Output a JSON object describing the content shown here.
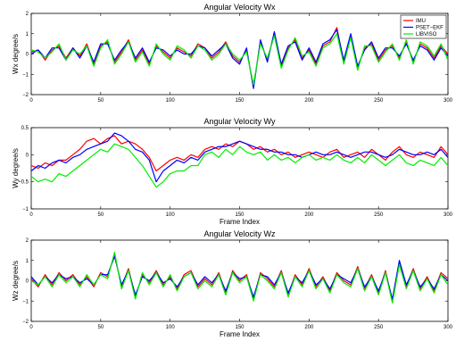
{
  "chart_data": [
    {
      "type": "line",
      "title": "Angular Velocity Wx",
      "xlabel": "",
      "ylabel": "Wx degree/s",
      "xlim": [
        0,
        300
      ],
      "ylim": [
        -2,
        2
      ],
      "xticks": [
        "0",
        "50",
        "100",
        "150",
        "200",
        "250",
        "300"
      ],
      "yticks": [
        "2",
        "1",
        "0",
        "−1",
        "−2"
      ],
      "legend": {
        "placement": "top-right",
        "entries": [
          "IMU",
          "PSET−EKF",
          "LIBVISO"
        ]
      },
      "x": [
        0,
        5,
        10,
        15,
        20,
        25,
        30,
        35,
        40,
        45,
        50,
        55,
        60,
        65,
        70,
        75,
        80,
        85,
        90,
        95,
        100,
        105,
        110,
        115,
        120,
        125,
        130,
        135,
        140,
        145,
        150,
        155,
        160,
        165,
        170,
        175,
        180,
        185,
        190,
        195,
        200,
        205,
        210,
        215,
        220,
        225,
        230,
        235,
        240,
        245,
        250,
        255,
        260,
        265,
        270,
        275,
        280,
        285,
        290,
        295,
        300
      ],
      "series": [
        {
          "name": "IMU",
          "color": "#ff0000",
          "values": [
            0.1,
            0.2,
            -0.3,
            0.2,
            0.4,
            -0.2,
            0.3,
            -0.1,
            0.5,
            -0.5,
            0.4,
            0.6,
            -0.4,
            0.1,
            0.7,
            -0.3,
            0.2,
            -0.5,
            0.4,
            0.1,
            -0.2,
            0.3,
            0.1,
            -0.1,
            0.5,
            0.3,
            -0.2,
            0.1,
            0.6,
            -0.1,
            -0.4,
            0.2,
            -1.6,
            0.6,
            -0.3,
            1.0,
            -0.6,
            0.3,
            0.7,
            -0.2,
            0.2,
            -0.5,
            0.4,
            0.6,
            1.3,
            -0.4,
            0.9,
            -0.7,
            0.3,
            0.5,
            -0.3,
            0.2,
            0.4,
            -0.2,
            0.6,
            -0.4,
            0.5,
            0.3,
            -0.2,
            0.4,
            0.0
          ]
        },
        {
          "name": "PSET−EKF",
          "color": "#0000ff",
          "values": [
            0.0,
            0.2,
            -0.2,
            0.3,
            0.3,
            -0.3,
            0.3,
            -0.2,
            0.4,
            -0.4,
            0.5,
            0.5,
            -0.3,
            0.2,
            0.6,
            -0.2,
            0.3,
            -0.4,
            0.3,
            0.2,
            -0.1,
            0.2,
            0.0,
            0.0,
            0.4,
            0.3,
            -0.1,
            0.2,
            0.5,
            -0.2,
            -0.5,
            0.3,
            -1.7,
            0.7,
            -0.4,
            1.1,
            -0.5,
            0.4,
            0.6,
            -0.3,
            0.3,
            -0.4,
            0.5,
            0.7,
            1.2,
            -0.3,
            1.0,
            -0.6,
            0.2,
            0.6,
            -0.2,
            0.3,
            0.3,
            -0.1,
            0.5,
            -0.3,
            0.4,
            0.2,
            -0.3,
            0.3,
            -0.1
          ]
        },
        {
          "name": "LIBVISO",
          "color": "#00ee00",
          "values": [
            0.2,
            0.1,
            -0.2,
            0.1,
            0.5,
            -0.3,
            0.2,
            0.0,
            0.4,
            -0.6,
            0.3,
            0.7,
            -0.5,
            0.0,
            0.6,
            -0.4,
            0.1,
            -0.6,
            0.5,
            0.0,
            -0.3,
            0.4,
            0.2,
            -0.2,
            0.4,
            0.2,
            -0.3,
            0.0,
            0.5,
            0.0,
            -0.3,
            0.1,
            -1.5,
            0.5,
            -0.2,
            0.9,
            -0.7,
            0.2,
            0.8,
            -0.1,
            0.1,
            -0.6,
            0.3,
            0.5,
            1.0,
            -0.5,
            0.8,
            -0.8,
            0.4,
            0.4,
            -0.4,
            0.1,
            0.5,
            -0.3,
            0.7,
            -0.5,
            0.6,
            0.4,
            -0.1,
            0.5,
            -0.3
          ]
        }
      ]
    },
    {
      "type": "line",
      "title": "Angular Velocity Wy",
      "xlabel": "Frame Index",
      "ylabel": "Wy degree/s",
      "xlim": [
        0,
        300
      ],
      "ylim": [
        -1,
        0.5
      ],
      "xticks": [
        "0",
        "50",
        "100",
        "150",
        "200",
        "250",
        "300"
      ],
      "yticks": [
        "0.5",
        "0",
        "−0.5",
        "−1"
      ],
      "x": [
        0,
        5,
        10,
        15,
        20,
        25,
        30,
        35,
        40,
        45,
        50,
        55,
        60,
        65,
        70,
        75,
        80,
        85,
        90,
        95,
        100,
        105,
        110,
        115,
        120,
        125,
        130,
        135,
        140,
        145,
        150,
        155,
        160,
        165,
        170,
        175,
        180,
        185,
        190,
        195,
        200,
        205,
        210,
        215,
        220,
        225,
        230,
        235,
        240,
        245,
        250,
        255,
        260,
        265,
        270,
        275,
        280,
        285,
        290,
        295,
        300
      ],
      "series": [
        {
          "name": "IMU",
          "color": "#ff0000",
          "values": [
            -0.2,
            -0.25,
            -0.15,
            -0.2,
            -0.1,
            -0.1,
            0.0,
            0.1,
            0.25,
            0.3,
            0.2,
            0.3,
            0.35,
            0.2,
            0.25,
            0.2,
            0.1,
            -0.05,
            -0.3,
            -0.2,
            -0.1,
            -0.05,
            -0.1,
            0.0,
            -0.05,
            0.1,
            0.15,
            0.1,
            0.2,
            0.15,
            0.25,
            0.2,
            0.1,
            0.15,
            0.05,
            0.1,
            0.0,
            0.05,
            -0.05,
            0.0,
            0.05,
            0.0,
            -0.05,
            0.05,
            0.1,
            -0.05,
            0.0,
            0.05,
            -0.05,
            0.1,
            0.0,
            -0.1,
            0.05,
            0.15,
            0.0,
            -0.05,
            0.05,
            0.0,
            -0.05,
            0.15,
            0.0
          ]
        },
        {
          "name": "PSET−EKF",
          "color": "#0000ff",
          "values": [
            -0.3,
            -0.2,
            -0.25,
            -0.15,
            -0.1,
            -0.15,
            -0.05,
            0.0,
            0.1,
            0.15,
            0.2,
            0.25,
            0.4,
            0.35,
            0.25,
            0.1,
            0.05,
            -0.1,
            -0.5,
            -0.3,
            -0.2,
            -0.1,
            -0.15,
            -0.05,
            -0.1,
            0.05,
            0.1,
            0.15,
            0.15,
            0.2,
            0.25,
            0.2,
            0.15,
            0.1,
            0.1,
            0.05,
            0.05,
            0.0,
            0.0,
            -0.05,
            0.0,
            0.05,
            0.0,
            0.0,
            0.05,
            0.0,
            -0.05,
            0.0,
            0.05,
            0.05,
            0.0,
            -0.05,
            0.0,
            0.1,
            0.05,
            0.0,
            0.0,
            0.05,
            0.0,
            0.1,
            -0.05
          ]
        },
        {
          "name": "LIBVISO",
          "color": "#00ee00",
          "values": [
            -0.4,
            -0.5,
            -0.45,
            -0.5,
            -0.35,
            -0.4,
            -0.3,
            -0.2,
            -0.1,
            0.0,
            0.1,
            0.05,
            0.2,
            0.15,
            0.1,
            -0.05,
            -0.2,
            -0.4,
            -0.6,
            -0.5,
            -0.35,
            -0.3,
            -0.3,
            -0.2,
            -0.2,
            0.0,
            0.05,
            -0.05,
            0.1,
            0.0,
            0.15,
            0.05,
            0.0,
            0.05,
            -0.1,
            0.0,
            -0.1,
            -0.05,
            -0.15,
            -0.05,
            0.0,
            -0.1,
            -0.05,
            -0.1,
            0.0,
            -0.1,
            -0.15,
            -0.05,
            -0.15,
            0.0,
            -0.1,
            -0.2,
            -0.1,
            0.0,
            -0.15,
            -0.2,
            -0.1,
            -0.15,
            -0.2,
            -0.05,
            -0.2
          ]
        }
      ]
    },
    {
      "type": "line",
      "title": "Angular Velocity Wz",
      "xlabel": "Frame Index",
      "ylabel": "Wz degree/s",
      "xlim": [
        0,
        300
      ],
      "ylim": [
        -2,
        2
      ],
      "xticks": [
        "0",
        "50",
        "100",
        "150",
        "200",
        "250",
        "300"
      ],
      "yticks": [
        "2",
        "1",
        "0",
        "−1",
        "−2"
      ],
      "x": [
        0,
        5,
        10,
        15,
        20,
        25,
        30,
        35,
        40,
        45,
        50,
        55,
        60,
        65,
        70,
        75,
        80,
        85,
        90,
        95,
        100,
        105,
        110,
        115,
        120,
        125,
        130,
        135,
        140,
        145,
        150,
        155,
        160,
        165,
        170,
        175,
        180,
        185,
        190,
        195,
        200,
        205,
        210,
        215,
        220,
        225,
        230,
        235,
        240,
        245,
        250,
        255,
        260,
        265,
        270,
        275,
        280,
        285,
        290,
        295,
        300
      ],
      "series": [
        {
          "name": "IMU",
          "color": "#ff0000",
          "values": [
            0.1,
            -0.3,
            0.3,
            -0.2,
            0.4,
            0.0,
            0.3,
            -0.2,
            0.2,
            -0.3,
            0.4,
            0.2,
            1.3,
            -0.3,
            0.6,
            -0.8,
            0.3,
            -0.1,
            0.5,
            -0.2,
            0.2,
            -0.4,
            0.3,
            0.5,
            -0.3,
            0.1,
            -0.2,
            0.4,
            -0.6,
            0.5,
            0.0,
            0.3,
            -0.9,
            0.4,
            0.1,
            -0.3,
            0.5,
            -0.7,
            0.3,
            -0.2,
            0.6,
            -0.3,
            0.2,
            -0.5,
            0.4,
            0.0,
            -0.2,
            0.7,
            -0.4,
            0.3,
            -0.6,
            0.5,
            -1.0,
            0.9,
            -0.3,
            0.6,
            -0.4,
            0.2,
            -0.5,
            0.4,
            0.1
          ]
        },
        {
          "name": "PSET−EKF",
          "color": "#0000ff",
          "values": [
            0.2,
            -0.2,
            0.2,
            -0.1,
            0.3,
            0.1,
            0.2,
            -0.1,
            0.1,
            -0.2,
            0.3,
            0.3,
            1.2,
            -0.2,
            0.5,
            -0.7,
            0.2,
            0.0,
            0.4,
            -0.1,
            0.1,
            -0.3,
            0.2,
            0.4,
            -0.2,
            0.2,
            -0.1,
            0.3,
            -0.5,
            0.4,
            0.1,
            0.2,
            -0.8,
            0.3,
            0.2,
            -0.2,
            0.4,
            -0.6,
            0.2,
            -0.1,
            0.5,
            -0.2,
            0.1,
            -0.4,
            0.3,
            0.1,
            -0.1,
            0.6,
            -0.3,
            0.2,
            -0.5,
            0.4,
            -0.9,
            1.0,
            -0.2,
            0.5,
            -0.3,
            0.1,
            -0.4,
            0.3,
            0.0
          ]
        },
        {
          "name": "LIBVISO",
          "color": "#00ee00",
          "values": [
            0.0,
            -0.2,
            0.2,
            -0.3,
            0.3,
            -0.1,
            0.2,
            -0.3,
            0.3,
            -0.2,
            0.3,
            0.1,
            1.4,
            -0.4,
            0.5,
            -0.9,
            0.4,
            -0.2,
            0.4,
            -0.3,
            0.3,
            -0.5,
            0.2,
            0.4,
            -0.4,
            0.0,
            -0.3,
            0.3,
            -0.7,
            0.4,
            -0.1,
            0.2,
            -1.0,
            0.3,
            0.0,
            -0.4,
            0.4,
            -0.8,
            0.2,
            -0.3,
            0.5,
            -0.4,
            0.1,
            -0.6,
            0.3,
            -0.1,
            -0.3,
            0.6,
            -0.5,
            0.2,
            -0.7,
            0.4,
            -1.1,
            0.8,
            -0.4,
            0.5,
            -0.5,
            0.1,
            -0.6,
            0.3,
            -0.2
          ]
        }
      ]
    }
  ]
}
